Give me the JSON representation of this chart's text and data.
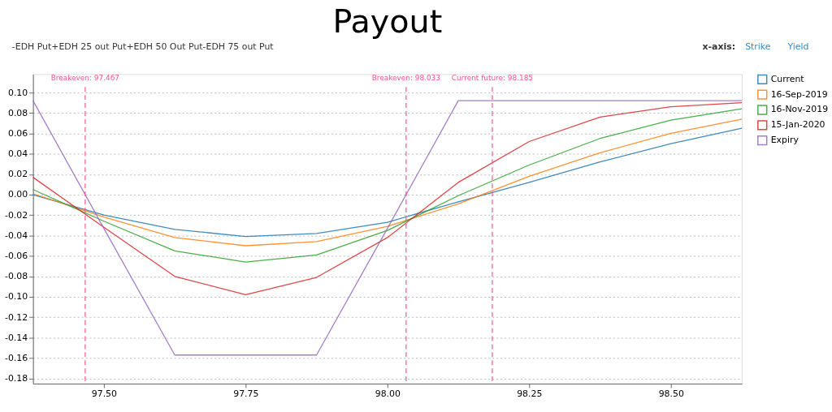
{
  "chart_data": {
    "type": "line",
    "title": "Payout",
    "x": [
      97.375,
      97.5,
      97.625,
      97.75,
      97.875,
      98.0,
      98.125,
      98.25,
      98.375,
      98.5,
      98.625
    ],
    "series": [
      {
        "name": "Current",
        "color": "#1f77b4",
        "values": [
          0.0,
          -0.02,
          -0.034,
          -0.041,
          -0.038,
          -0.027,
          -0.007,
          0.012,
          0.032,
          0.05,
          0.065
        ]
      },
      {
        "name": "16-Sep-2019",
        "color": "#ff7f0e",
        "values": [
          0.001,
          -0.022,
          -0.042,
          -0.05,
          -0.046,
          -0.031,
          -0.009,
          0.018,
          0.041,
          0.06,
          0.074
        ]
      },
      {
        "name": "16-Nov-2019",
        "color": "#2ca02c",
        "values": [
          0.005,
          -0.026,
          -0.055,
          -0.066,
          -0.059,
          -0.035,
          -0.001,
          0.029,
          0.055,
          0.073,
          0.084
        ]
      },
      {
        "name": "15-Jan-2020",
        "color": "#d62728",
        "values": [
          0.017,
          -0.032,
          -0.08,
          -0.098,
          -0.081,
          -0.042,
          0.012,
          0.052,
          0.076,
          0.086,
          0.09
        ]
      },
      {
        "name": "Expiry",
        "color": "#9467bd",
        "values": [
          0.092,
          -0.033,
          -0.157,
          -0.157,
          -0.157,
          -0.033,
          0.092,
          0.092,
          0.092,
          0.092,
          0.092
        ]
      }
    ],
    "xlim": [
      97.375,
      98.625
    ],
    "xticks": [
      {
        "value": 97.5,
        "label": "97.50"
      },
      {
        "value": 97.75,
        "label": "97.75"
      },
      {
        "value": 98.0,
        "label": "98.00"
      },
      {
        "value": 98.25,
        "label": "98.25"
      },
      {
        "value": 98.5,
        "label": "98.50"
      }
    ],
    "ylim": [
      -0.185,
      0.118
    ],
    "yticks": [
      {
        "value": -0.18,
        "label": "-0.18"
      },
      {
        "value": -0.16,
        "label": "-0.16"
      },
      {
        "value": -0.14,
        "label": "-0.14"
      },
      {
        "value": -0.12,
        "label": "-0.12"
      },
      {
        "value": -0.1,
        "label": "-0.10"
      },
      {
        "value": -0.08,
        "label": "-0.08"
      },
      {
        "value": -0.06,
        "label": "-0.06"
      },
      {
        "value": -0.04,
        "label": "-0.04"
      },
      {
        "value": -0.02,
        "label": "-0.02"
      },
      {
        "value": 0,
        "label": "0.00"
      },
      {
        "value": 0.02,
        "label": "0.02"
      },
      {
        "value": 0.04,
        "label": "0.04"
      },
      {
        "value": 0.06,
        "label": "0.06"
      },
      {
        "value": 0.08,
        "label": "0.08"
      },
      {
        "value": 0.1,
        "label": "0.10"
      }
    ],
    "ref_lines": [
      {
        "axis": "x",
        "value": 97.467,
        "label": "Breakeven: 97.467",
        "color": "#f0588f",
        "line_style": "dashed"
      },
      {
        "axis": "x",
        "value": 98.033,
        "label": "Breakeven: 98.033",
        "color": "#f0588f",
        "line_style": "dashed"
      },
      {
        "axis": "x",
        "value": 98.185,
        "label": "Current future: 98.185",
        "color": "#f0588f",
        "line_style": "dashed"
      }
    ],
    "annotations": [
      "-EDH Put+EDH 25 out Put+EDH 50 Out Put-EDH 75 out Put",
      "x-axis:",
      "Strike",
      "Yield"
    ],
    "grid": "y",
    "legend": "top right",
    "line_style": "solid",
    "marker": "none"
  }
}
